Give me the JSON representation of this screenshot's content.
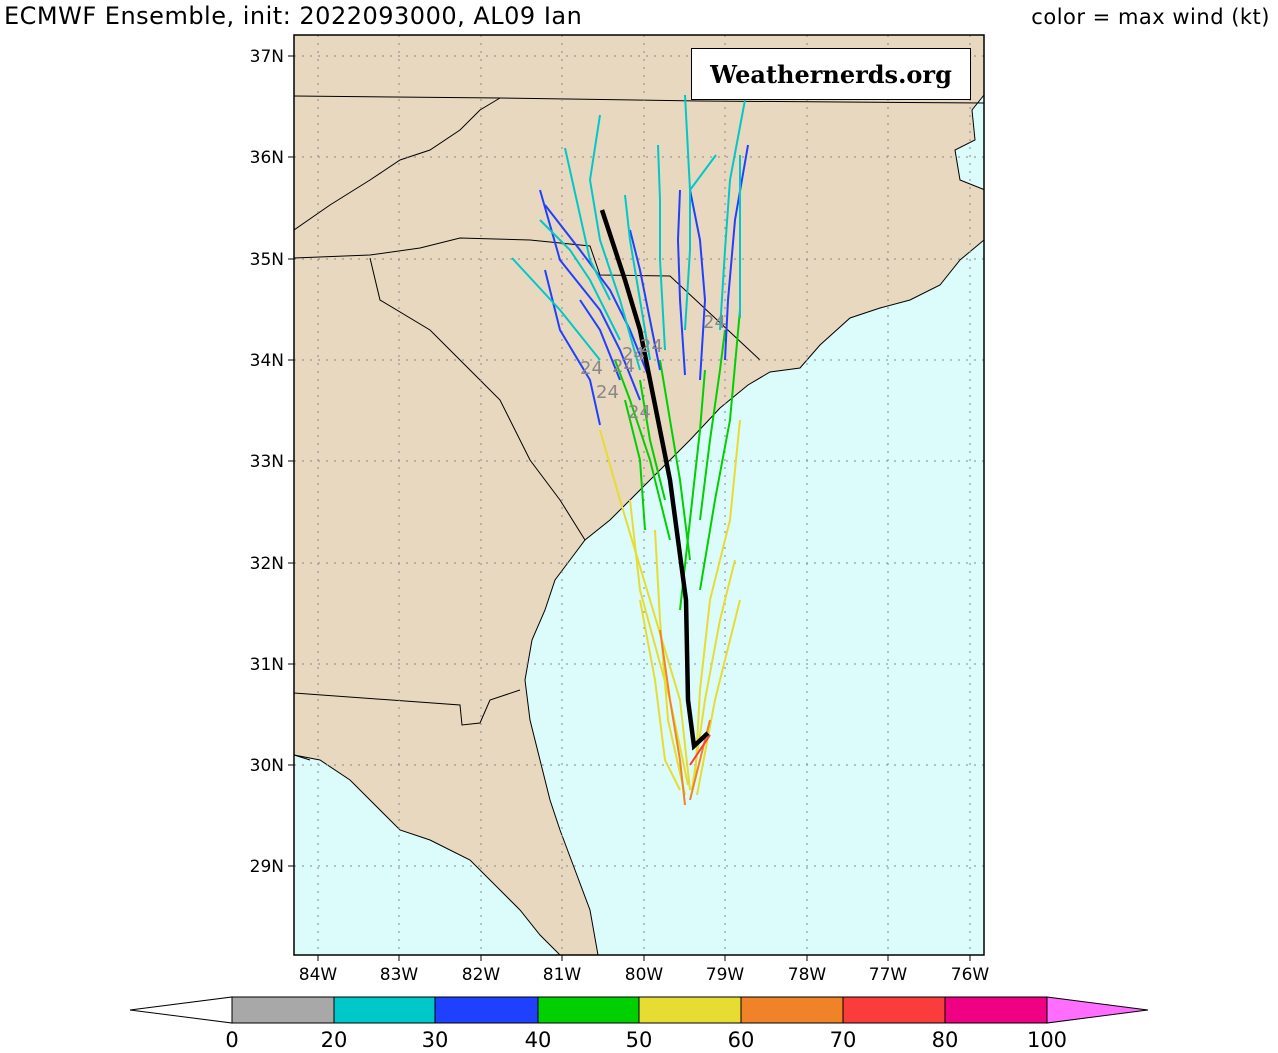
{
  "title_left": "ECMWF Ensemble, init: 2022093000, AL09 Ian",
  "title_right": "color = max wind (kt)",
  "watermark": "Weathernerds.org",
  "lat_labels": [
    "37N",
    "36N",
    "35N",
    "34N",
    "33N",
    "32N",
    "31N",
    "30N",
    "29N"
  ],
  "lon_labels": [
    "84W",
    "83W",
    "82W",
    "81W",
    "80W",
    "79W",
    "78W",
    "77W",
    "76W"
  ],
  "colorbar": {
    "ticks": [
      "0",
      "20",
      "30",
      "40",
      "50",
      "60",
      "70",
      "80",
      "100"
    ],
    "colors": [
      "#a8a8a8",
      "#00c8c8",
      "#2040ff",
      "#00d000",
      "#e6dc32",
      "#f08228",
      "#fa3c3c",
      "#f00082",
      "#ff6eff"
    ]
  },
  "colors": {
    "land": "#e8d8c0",
    "ocean": "#dcfcfc",
    "mean_track": "#000000"
  },
  "track_labels": [
    "24",
    "24",
    "24",
    "24",
    "24",
    "24",
    "24"
  ]
}
